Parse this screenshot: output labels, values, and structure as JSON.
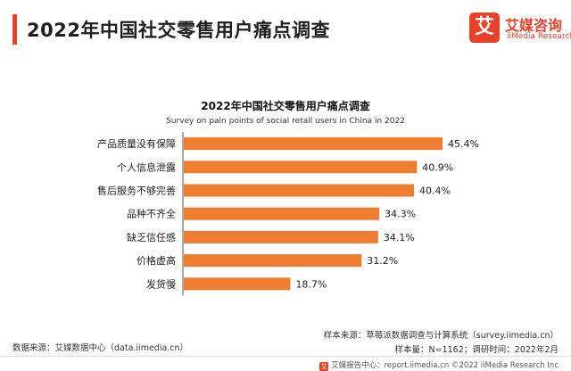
{
  "header": {
    "title": "2022年中国社交零售用户痛点调查"
  },
  "logo": {
    "mark": "艾",
    "name_cn": "艾媒咨询",
    "name_en": "iiMedia Research"
  },
  "colors": {
    "accent": "#e8412a",
    "bar": "#ee7d2f",
    "axis": "#555555",
    "brand": "#e8412a"
  },
  "chart_data": {
    "type": "bar",
    "orientation": "horizontal",
    "title": "2022年中国社交零售用户痛点调查",
    "subtitle": "Survey on pain points of social retail users in China in 2022",
    "categories": [
      "产品质量没有保障",
      "个人信息泄露",
      "售后服务不够完善",
      "品种不齐全",
      "缺乏信任感",
      "价格虚高",
      "发货慢"
    ],
    "values": [
      45.4,
      40.9,
      40.4,
      34.3,
      34.1,
      31.2,
      18.7
    ],
    "labels": [
      "45.4%",
      "40.9%",
      "40.4%",
      "34.3%",
      "34.1%",
      "31.2%",
      "18.7%"
    ],
    "unit": "%",
    "xlim": [
      0,
      50
    ],
    "grid": false,
    "legend": "none"
  },
  "sources": {
    "left": "数据来源：艾媒数据中心（data.iimedia.cn）",
    "right": "样本来源：草莓派数据调查与计算系统（survey.iimedia.cn）",
    "meta": "样本量：N=1162；调研时间：2022年2月"
  },
  "footer": {
    "icon": "艾",
    "text": "艾媒报告中心：report.iimedia.cn  ©2022  iiMedia Research  Inc"
  }
}
